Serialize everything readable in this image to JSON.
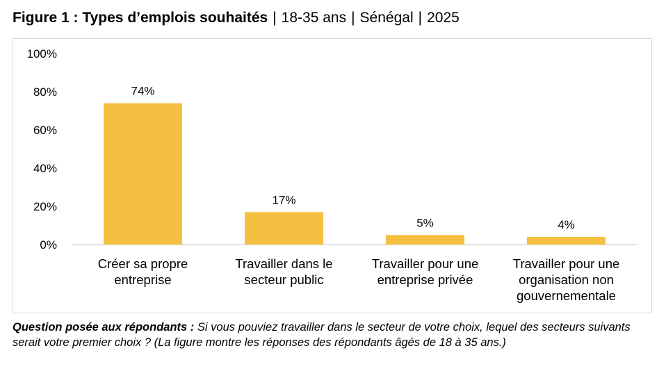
{
  "title": {
    "main": "Figure 1 : Types d’emplois souhaités",
    "age": "18-35 ans",
    "country": "Sénégal",
    "year": "2025",
    "separator": "|"
  },
  "note": {
    "question_label": "Question posée aux répondants :",
    "text": "Si vous pouviez travailler dans le secteur de votre choix, lequel des secteurs suivants serait votre premier choix ? (La figure montre les réponses des répondants âgés de 18 à 35 ans.)"
  },
  "chart_data": {
    "type": "bar",
    "categories": [
      [
        "Créer sa propre",
        "entreprise"
      ],
      [
        "Travailler dans le",
        "secteur public"
      ],
      [
        "Travailler pour une",
        "entreprise privée"
      ],
      [
        "Travailler pour une",
        "organisation non",
        "gouvernementale"
      ]
    ],
    "values": [
      74,
      17,
      5,
      4
    ],
    "data_labels": [
      "74%",
      "17%",
      "5%",
      "4%"
    ],
    "y_ticks": [
      "0%",
      "20%",
      "40%",
      "60%",
      "80%",
      "100%"
    ],
    "ylim": [
      0,
      100
    ],
    "bar_color": "#F5C042",
    "axis_color": "#d9d9d9",
    "grid": false,
    "legend": "none"
  }
}
